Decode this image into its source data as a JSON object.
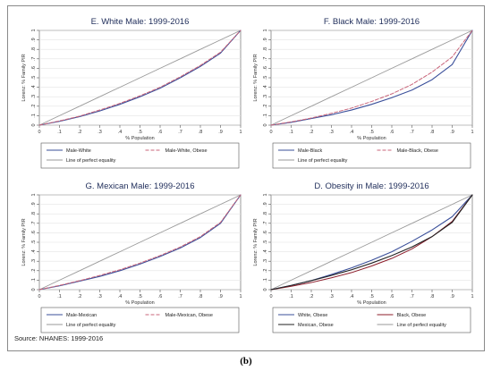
{
  "source": "Source: NHANES: 1999-2016",
  "caption": "(b)",
  "chart_data": [
    {
      "type": "line",
      "title": "E. White Male: 1999-2016",
      "xlabel": "% Population",
      "ylabel": "Lorenz: % Family PIR",
      "xlim": [
        0,
        1
      ],
      "ylim": [
        0,
        1
      ],
      "xticks": [
        "0",
        ".1",
        ".2",
        ".3",
        ".4",
        ".5",
        ".6",
        ".7",
        ".8",
        ".9",
        "1"
      ],
      "yticks": [
        "0",
        ".1",
        ".2",
        ".3",
        ".4",
        ".5",
        ".6",
        ".7",
        ".8",
        ".9",
        "1"
      ],
      "grid": true,
      "legend_position": "bottom",
      "x": [
        0,
        0.1,
        0.2,
        0.3,
        0.4,
        0.5,
        0.6,
        0.7,
        0.8,
        0.9,
        1
      ],
      "series": [
        {
          "name": "Male-White",
          "color": "#3a4f9a",
          "style": "solid",
          "width": 1.1,
          "values": [
            0,
            0.04,
            0.09,
            0.15,
            0.22,
            0.3,
            0.39,
            0.5,
            0.62,
            0.76,
            1
          ]
        },
        {
          "name": "Male-White, Obese",
          "color": "#c9657a",
          "style": "dashed",
          "width": 1.0,
          "values": [
            0,
            0.045,
            0.095,
            0.16,
            0.23,
            0.31,
            0.4,
            0.51,
            0.63,
            0.77,
            1
          ]
        },
        {
          "name": "Line of perfect equality",
          "color": "#9a9a9a",
          "style": "solid",
          "width": 0.9,
          "values": [
            0,
            0.1,
            0.2,
            0.3,
            0.4,
            0.5,
            0.6,
            0.7,
            0.8,
            0.9,
            1
          ]
        }
      ]
    },
    {
      "type": "line",
      "title": "F. Black Male: 1999-2016",
      "xlabel": "% Population",
      "ylabel": "Lorenz: % Family PIR",
      "xlim": [
        0,
        1
      ],
      "ylim": [
        0,
        1
      ],
      "xticks": [
        "0",
        ".1",
        ".2",
        ".3",
        ".4",
        ".5",
        ".6",
        ".7",
        ".8",
        ".9",
        "1"
      ],
      "yticks": [
        "0",
        ".1",
        ".2",
        ".3",
        ".4",
        ".5",
        ".6",
        ".7",
        ".8",
        ".9",
        "1"
      ],
      "grid": true,
      "legend_position": "bottom",
      "x": [
        0,
        0.1,
        0.2,
        0.3,
        0.4,
        0.5,
        0.6,
        0.7,
        0.8,
        0.9,
        1
      ],
      "series": [
        {
          "name": "Male-Black",
          "color": "#3a4f9a",
          "style": "solid",
          "width": 1.1,
          "values": [
            0,
            0.03,
            0.07,
            0.11,
            0.16,
            0.22,
            0.29,
            0.37,
            0.48,
            0.64,
            1
          ]
        },
        {
          "name": "Male-Black, Obese",
          "color": "#c9657a",
          "style": "dashed",
          "width": 1.0,
          "values": [
            0,
            0.035,
            0.075,
            0.125,
            0.18,
            0.25,
            0.33,
            0.43,
            0.56,
            0.72,
            1
          ]
        },
        {
          "name": "Line of perfect equality",
          "color": "#9a9a9a",
          "style": "solid",
          "width": 0.9,
          "values": [
            0,
            0.1,
            0.2,
            0.3,
            0.4,
            0.5,
            0.6,
            0.7,
            0.8,
            0.9,
            1
          ]
        }
      ]
    },
    {
      "type": "line",
      "title": "G. Mexican Male: 1999-2016",
      "xlabel": "% Population",
      "ylabel": "Lorenz: % Family PIR",
      "xlim": [
        0,
        1
      ],
      "ylim": [
        0,
        1
      ],
      "xticks": [
        "0",
        ".1",
        ".2",
        ".3",
        ".4",
        ".5",
        ".6",
        ".7",
        ".8",
        ".9",
        "1"
      ],
      "yticks": [
        "0",
        ".1",
        ".2",
        ".3",
        ".4",
        ".5",
        ".6",
        ".7",
        ".8",
        ".9",
        "1"
      ],
      "grid": true,
      "legend_position": "bottom",
      "x": [
        0,
        0.1,
        0.2,
        0.3,
        0.4,
        0.5,
        0.6,
        0.7,
        0.8,
        0.9,
        1
      ],
      "series": [
        {
          "name": "Male-Mexican",
          "color": "#3a4f9a",
          "style": "solid",
          "width": 1.1,
          "values": [
            0,
            0.04,
            0.09,
            0.14,
            0.2,
            0.27,
            0.35,
            0.44,
            0.55,
            0.7,
            1
          ]
        },
        {
          "name": "Male-Mexican, Obese",
          "color": "#c9657a",
          "style": "dashed",
          "width": 1.0,
          "values": [
            0,
            0.045,
            0.095,
            0.15,
            0.21,
            0.28,
            0.36,
            0.45,
            0.56,
            0.71,
            1
          ]
        },
        {
          "name": "Line of perfect equality",
          "color": "#9a9a9a",
          "style": "solid",
          "width": 0.9,
          "values": [
            0,
            0.1,
            0.2,
            0.3,
            0.4,
            0.5,
            0.6,
            0.7,
            0.8,
            0.9,
            1
          ]
        }
      ]
    },
    {
      "type": "line",
      "title": "D. Obesity in Male: 1999-2016",
      "xlabel": "% Population",
      "ylabel": "Lorenz: % Family PIR",
      "xlim": [
        0,
        1
      ],
      "ylim": [
        0,
        1
      ],
      "xticks": [
        "0",
        ".1",
        ".2",
        ".3",
        ".4",
        ".5",
        ".6",
        ".7",
        ".8",
        ".9",
        "1"
      ],
      "yticks": [
        "0",
        ".1",
        ".2",
        ".3",
        ".4",
        ".5",
        ".6",
        ".7",
        ".8",
        ".9",
        "1"
      ],
      "grid": true,
      "legend_position": "bottom",
      "x": [
        0,
        0.1,
        0.2,
        0.3,
        0.4,
        0.5,
        0.6,
        0.7,
        0.8,
        0.9,
        1
      ],
      "series": [
        {
          "name": "White, Obese",
          "color": "#3a4f9a",
          "style": "solid",
          "width": 1.1,
          "values": [
            0,
            0.045,
            0.095,
            0.16,
            0.23,
            0.31,
            0.4,
            0.51,
            0.63,
            0.77,
            1
          ]
        },
        {
          "name": "Black, Obese",
          "color": "#8c1c2a",
          "style": "solid",
          "width": 1.0,
          "values": [
            0,
            0.035,
            0.075,
            0.125,
            0.18,
            0.25,
            0.33,
            0.43,
            0.56,
            0.72,
            1
          ]
        },
        {
          "name": "Mexican, Obese",
          "color": "#222222",
          "style": "solid",
          "width": 1.1,
          "values": [
            0,
            0.045,
            0.095,
            0.15,
            0.21,
            0.28,
            0.36,
            0.45,
            0.56,
            0.71,
            1
          ]
        },
        {
          "name": "Line of perfect equality",
          "color": "#9a9a9a",
          "style": "solid",
          "width": 0.9,
          "values": [
            0,
            0.1,
            0.2,
            0.3,
            0.4,
            0.5,
            0.6,
            0.7,
            0.8,
            0.9,
            1
          ]
        }
      ]
    }
  ]
}
